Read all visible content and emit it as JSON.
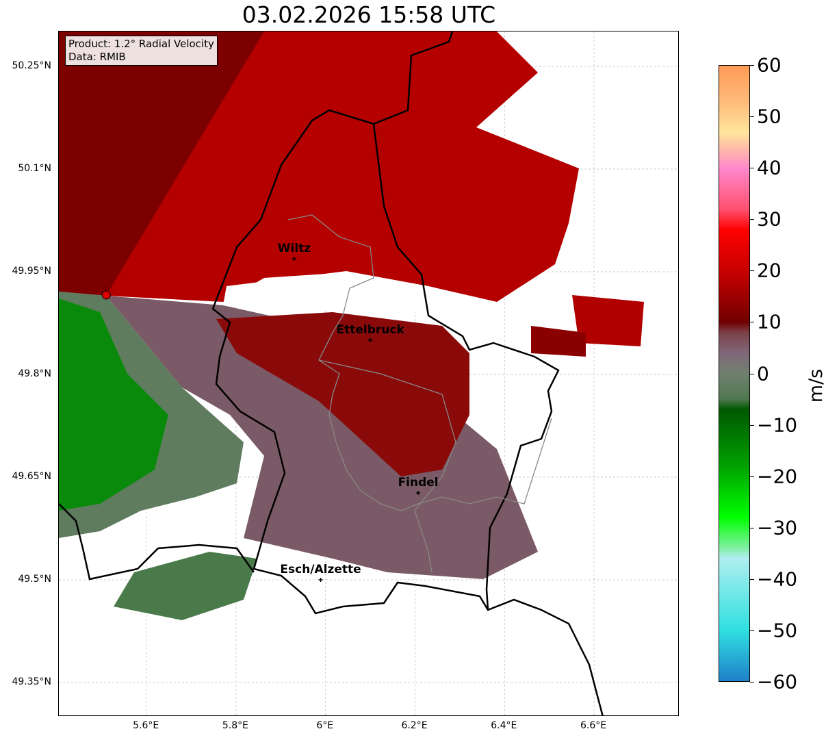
{
  "title": "03.02.2026 15:58 UTC",
  "info": {
    "product": "Product: 1.2° Radial Velocity",
    "data": "Data: RMIB"
  },
  "chart_data": {
    "type": "map",
    "xlim": [
      5.404,
      6.791
    ],
    "ylim": [
      49.3,
      50.301
    ],
    "xticks": [
      {
        "v": 5.6,
        "label": "5.6°E"
      },
      {
        "v": 5.8,
        "label": "5.8°E"
      },
      {
        "v": 6.0,
        "label": "6°E"
      },
      {
        "v": 6.2,
        "label": "6.2°E"
      },
      {
        "v": 6.4,
        "label": "6.4°E"
      },
      {
        "v": 6.6,
        "label": "6.6°E"
      }
    ],
    "yticks": [
      {
        "v": 50.25,
        "label": "50.25°N"
      },
      {
        "v": 50.1,
        "label": "50.1°N"
      },
      {
        "v": 49.95,
        "label": "49.95°N"
      },
      {
        "v": 49.8,
        "label": "49.8°N"
      },
      {
        "v": 49.65,
        "label": "49.65°N"
      },
      {
        "v": 49.5,
        "label": "49.5°N"
      },
      {
        "v": 49.35,
        "label": "49.35°N"
      }
    ],
    "grid": true,
    "radar_site": {
      "lon": 5.51,
      "lat": 49.916
    },
    "cities": [
      {
        "name": "Wiltz",
        "lon": 5.93,
        "lat": 49.969
      },
      {
        "name": "Ettelbruck",
        "lon": 6.1,
        "lat": 49.85
      },
      {
        "name": "Findel",
        "lon": 6.207,
        "lat": 49.627
      },
      {
        "name": "Esch/Alzette",
        "lon": 5.989,
        "lat": 49.5
      }
    ],
    "colorbar": {
      "label": "m/s",
      "range": [
        -60,
        60
      ],
      "ticks": [
        "60",
        "50",
        "40",
        "30",
        "20",
        "10",
        "0",
        "−10",
        "−20",
        "−30",
        "−40",
        "−50",
        "−60"
      ],
      "stops": [
        [
          "#ff9a55",
          60
        ],
        [
          "#ffc080",
          52
        ],
        [
          "#ffe69a",
          47
        ],
        [
          "#ffb0b0",
          43
        ],
        [
          "#ff88cc",
          40
        ],
        [
          "#ff5070",
          32
        ],
        [
          "#ff0000",
          28
        ],
        [
          "#c80000",
          20
        ],
        [
          "#700000",
          10
        ],
        [
          "#7c4048",
          8
        ],
        [
          "#806878",
          4
        ],
        [
          "#708070",
          0
        ],
        [
          "#507850",
          -5
        ],
        [
          "#005800",
          -7
        ],
        [
          "#00a000",
          -18
        ],
        [
          "#00ff00",
          -28
        ],
        [
          "#80f0a0",
          -34
        ],
        [
          "#b0eef0",
          -36
        ],
        [
          "#30e0e0",
          -50
        ],
        [
          "#2080c8",
          -60
        ]
      ]
    }
  }
}
